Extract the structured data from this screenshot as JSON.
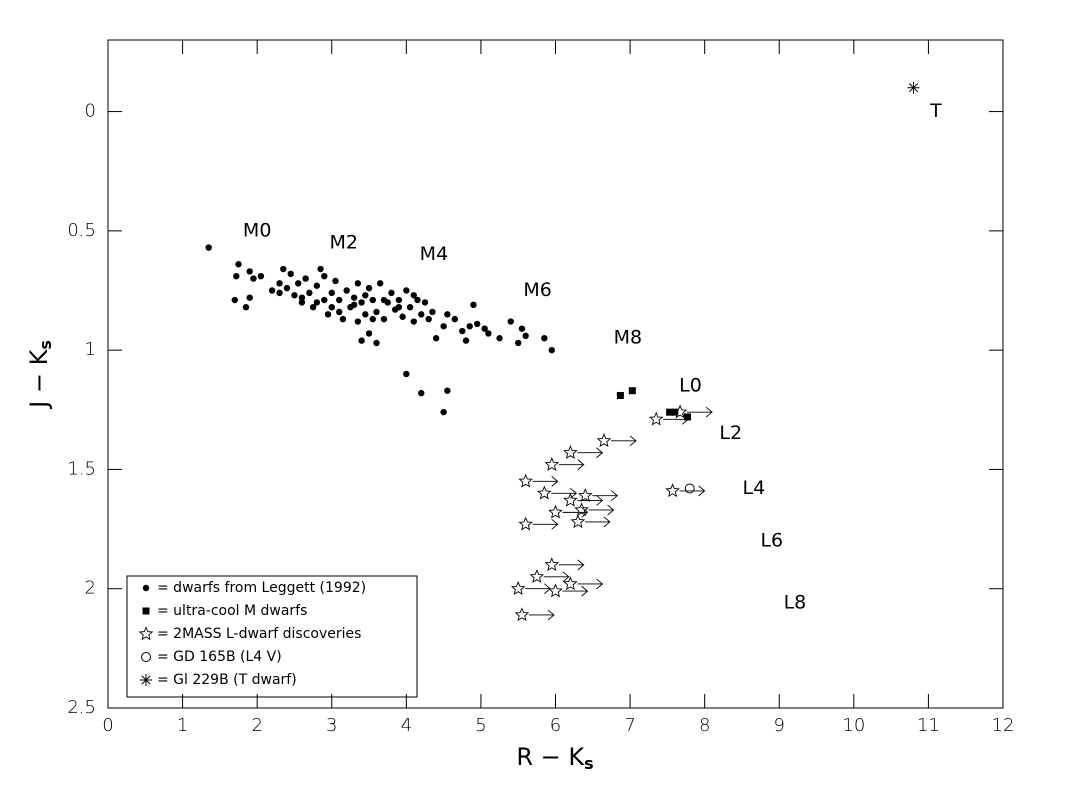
{
  "chart_data": {
    "type": "scatter",
    "xlabel": "R − K",
    "xlabel_sub": "s",
    "ylabel": "J − K",
    "ylabel_sub": "s",
    "xlim": [
      0,
      12
    ],
    "ylim": [
      -0.3,
      2.5
    ],
    "y_inverted": true,
    "xticks": [
      0,
      1,
      2,
      3,
      4,
      5,
      6,
      7,
      8,
      9,
      10,
      11,
      12
    ],
    "yticks": [
      0,
      0.5,
      1,
      1.5,
      2,
      2.5
    ],
    "legend": "lower left",
    "series": [
      {
        "name": "= dwarfs from Leggett (1992)",
        "marker": "dot",
        "color": "#000000",
        "x": [
          1.35,
          1.75,
          1.72,
          1.7,
          1.85,
          1.9,
          1.9,
          1.95,
          2.05,
          2.2,
          2.3,
          2.35,
          2.4,
          2.45,
          2.5,
          2.55,
          2.6,
          2.65,
          2.7,
          2.75,
          2.8,
          2.85,
          2.9,
          2.95,
          3.0,
          3.0,
          3.05,
          3.1,
          3.15,
          3.2,
          3.25,
          3.3,
          3.35,
          3.35,
          3.4,
          3.45,
          3.5,
          3.5,
          3.55,
          3.6,
          3.6,
          3.65,
          3.7,
          3.75,
          3.8,
          3.85,
          3.9,
          3.95,
          4.0,
          4.05,
          4.1,
          4.15,
          4.2,
          4.25,
          4.3,
          4.35,
          4.4,
          4.5,
          4.55,
          4.65,
          4.75,
          4.8,
          4.85,
          4.9,
          4.95,
          5.05,
          5.1,
          5.25,
          5.4,
          5.5,
          5.55,
          5.6,
          5.85,
          5.95,
          4.0,
          4.2,
          4.5,
          4.55,
          3.4,
          2.3,
          2.6,
          2.8,
          3.1,
          3.3,
          3.45,
          3.7,
          3.9,
          4.1,
          2.9,
          3.55
        ],
        "y": [
          0.57,
          0.64,
          0.69,
          0.79,
          0.82,
          0.78,
          0.67,
          0.7,
          0.69,
          0.75,
          0.72,
          0.66,
          0.74,
          0.68,
          0.77,
          0.72,
          0.8,
          0.7,
          0.76,
          0.82,
          0.73,
          0.66,
          0.79,
          0.85,
          0.76,
          0.82,
          0.71,
          0.79,
          0.87,
          0.75,
          0.82,
          0.78,
          0.72,
          0.88,
          0.8,
          0.85,
          0.74,
          0.93,
          0.79,
          0.84,
          0.97,
          0.72,
          0.87,
          0.8,
          0.76,
          0.83,
          0.79,
          0.86,
          0.75,
          0.82,
          0.88,
          0.79,
          0.85,
          0.8,
          0.87,
          0.84,
          0.95,
          0.9,
          0.85,
          0.87,
          0.92,
          0.96,
          0.9,
          0.81,
          0.89,
          0.91,
          0.93,
          0.95,
          0.88,
          0.97,
          0.91,
          0.94,
          0.95,
          1.0,
          1.1,
          1.18,
          1.26,
          1.17,
          0.96,
          0.76,
          0.78,
          0.8,
          0.84,
          0.81,
          0.77,
          0.79,
          0.82,
          0.77,
          0.69,
          0.87
        ]
      },
      {
        "name": "= ultra-cool M dwarfs",
        "marker": "square",
        "color": "#000000",
        "x": [
          6.87,
          7.03,
          7.53,
          7.6,
          7.77
        ],
        "y": [
          1.19,
          1.17,
          1.26,
          1.26,
          1.28
        ]
      },
      {
        "name": "= 2MASS L-dwarf discoveries",
        "marker": "star",
        "color": "#000000",
        "limit_arrows": true,
        "x": [
          7.67,
          7.35,
          6.65,
          6.2,
          5.95,
          5.6,
          5.85,
          6.2,
          6.4,
          6.35,
          6.0,
          6.3,
          5.6,
          7.57,
          5.95,
          5.75,
          6.2,
          5.5,
          6.0,
          5.55
        ],
        "y": [
          1.26,
          1.29,
          1.38,
          1.43,
          1.48,
          1.55,
          1.6,
          1.63,
          1.61,
          1.67,
          1.68,
          1.72,
          1.73,
          1.59,
          1.9,
          1.95,
          1.98,
          2.0,
          2.01,
          2.11
        ]
      },
      {
        "name": "= GD 165B  (L4 V)",
        "marker": "circle",
        "color": "#000000",
        "x": [
          7.8
        ],
        "y": [
          1.58
        ]
      },
      {
        "name": "= Gl 229B (T dwarf)",
        "marker": "asterisk",
        "color": "#000000",
        "x": [
          10.8
        ],
        "y": [
          -0.1
        ]
      }
    ],
    "annotations": [
      {
        "text": "M0",
        "x": 2.0,
        "y": 0.5
      },
      {
        "text": "M2",
        "x": 3.16,
        "y": 0.55
      },
      {
        "text": "M4",
        "x": 4.37,
        "y": 0.6
      },
      {
        "text": "M6",
        "x": 5.76,
        "y": 0.75
      },
      {
        "text": "M8",
        "x": 6.97,
        "y": 0.95
      },
      {
        "text": "L0",
        "x": 7.81,
        "y": 1.15
      },
      {
        "text": "L2",
        "x": 8.35,
        "y": 1.35
      },
      {
        "text": "L4",
        "x": 8.66,
        "y": 1.58
      },
      {
        "text": "L6",
        "x": 8.9,
        "y": 1.8
      },
      {
        "text": "L8",
        "x": 9.21,
        "y": 2.06
      },
      {
        "text": "T",
        "x": 11.1,
        "y": 0.0
      }
    ]
  }
}
